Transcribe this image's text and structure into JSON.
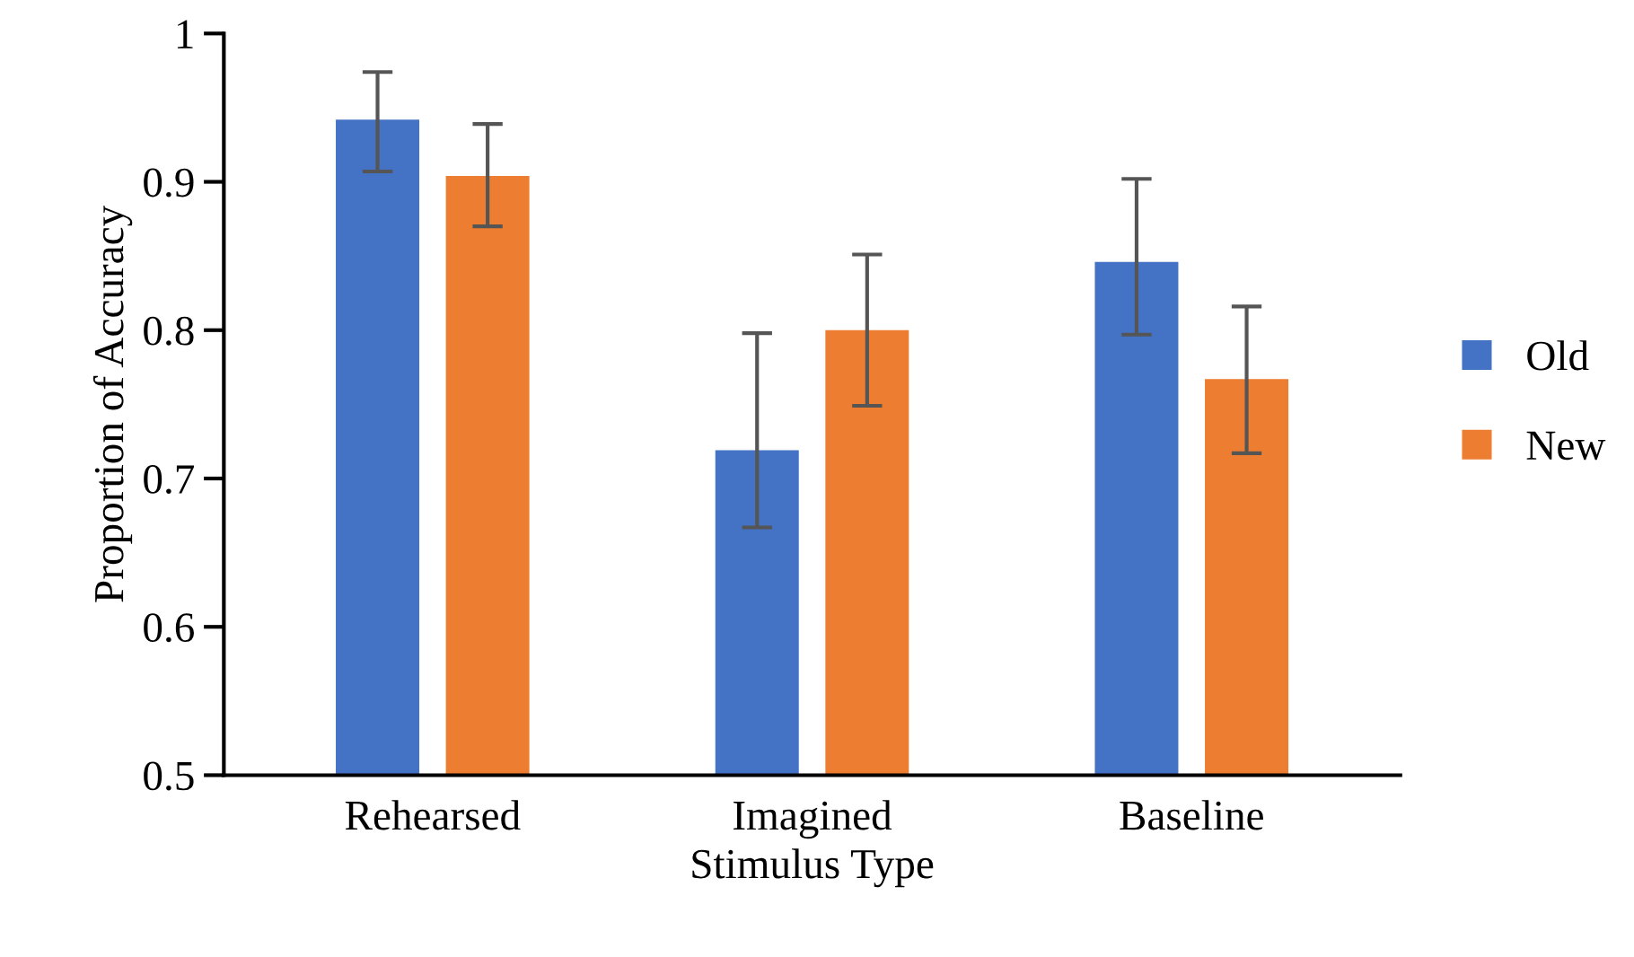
{
  "chart_data": {
    "type": "bar",
    "xlabel": "Stimulus Type",
    "ylabel": "Proportion of Accuracy",
    "categories": [
      "Rehearsed",
      "Imagined",
      "Baseline"
    ],
    "series": [
      {
        "name": "Old",
        "color": "#4472c4",
        "values": [
          0.942,
          0.719,
          0.846
        ],
        "errors": [
          [
            0.907,
            0.974
          ],
          [
            0.667,
            0.798
          ],
          [
            0.797,
            0.902
          ]
        ]
      },
      {
        "name": "New",
        "color": "#ed7d31",
        "values": [
          0.904,
          0.8,
          0.767
        ],
        "errors": [
          [
            0.87,
            0.939
          ],
          [
            0.749,
            0.851
          ],
          [
            0.717,
            0.816
          ]
        ]
      }
    ],
    "ylim": [
      0.5,
      1
    ],
    "yticks": [
      0.5,
      0.6,
      0.7,
      0.8,
      0.9,
      1
    ],
    "grid": false,
    "legend": "right"
  }
}
